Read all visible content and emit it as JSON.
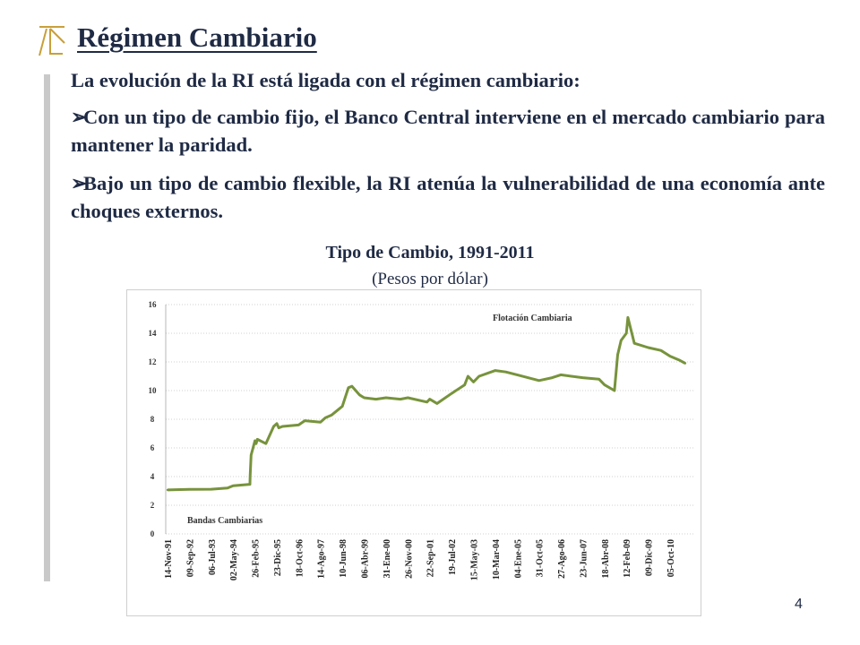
{
  "slide": {
    "title": "Régimen Cambiario",
    "intro": "La evolución de la RI está ligada con el régimen cambiario:",
    "bullets": [
      "Con un tipo de cambio fijo, el Banco Central interviene en el mercado cambiario para mantener la paridad.",
      "Bajo un tipo de cambio flexible, la RI atenúa la vulnerabilidad de una economía ante choques externos."
    ],
    "chart_title": "Tipo de Cambio, 1991-2011",
    "chart_subtitle": "(Pesos por dólar)",
    "page_number": "4"
  },
  "colors": {
    "text": "#1f2a44",
    "accent": "#c8a03a",
    "line": "#77933c",
    "grid": "#d0d0d0",
    "bar": "#c9c9c9"
  },
  "chart_data": {
    "type": "line",
    "title": "",
    "xlabel": "",
    "ylabel": "",
    "ylim": [
      0,
      16
    ],
    "yticks": [
      0,
      2,
      4,
      6,
      8,
      10,
      12,
      14,
      16
    ],
    "grid": true,
    "x_tick_labels": [
      "14-Nov-91",
      "09-Sep-92",
      "06-Jul-93",
      "02-May-94",
      "26-Feb-95",
      "23-Dic-95",
      "18-Oct-96",
      "14-Ago-97",
      "10-Jun-98",
      "06-Abr-99",
      "31-Ene-00",
      "26-Nov-00",
      "22-Sep-01",
      "19-Jul-02",
      "15-May-03",
      "10-Mar-04",
      "04-Ene-05",
      "31-Oct-05",
      "27-Ago-06",
      "23-Jun-07",
      "18-Abr-08",
      "12-Feb-09",
      "09-Dic-09",
      "05-Oct-10"
    ],
    "annotations": [
      "Flotación Cambiaria",
      "Bandas Cambiarias"
    ],
    "series": [
      {
        "x": [
          "14-Nov-91",
          "09-Sep-92",
          "06-Jul-93",
          "15-Feb-94",
          "02-May-94",
          "20-Dic-94",
          "22-Dic-94",
          "05-Ene-95",
          "26-Feb-95",
          "15-Mar-95",
          "01-Abr-95",
          "26-Jul-95",
          "10-Nov-95",
          "23-Dic-95",
          "20-Ene-96",
          "10-Mar-96",
          "18-Oct-96",
          "10-Ene-97",
          "14-Ago-97",
          "20-Oct-97",
          "15-Ene-98",
          "10-Jun-98",
          "01-Sep-98",
          "20-Oct-98",
          "01-Feb-99",
          "06-Abr-99",
          "15-Sep-99",
          "31-Ene-00",
          "15-Ago-00",
          "26-Nov-00",
          "15-Ago-01",
          "22-Sep-01",
          "01-Ene-02",
          "19-Jul-02",
          "15-Ene-03",
          "01-Mar-03",
          "15-May-03",
          "01-Ago-03",
          "10-Mar-04",
          "01-Ago-04",
          "04-Ene-05",
          "31-Oct-05",
          "01-May-06",
          "27-Ago-06",
          "23-Jun-07",
          "01-Feb-08",
          "18-Abr-08",
          "01-Sep-08",
          "15-Oct-08",
          "01-Dic-08",
          "12-Feb-09",
          "05-Mar-09",
          "01-Jun-09",
          "09-Dic-09",
          "01-Jun-10",
          "05-Oct-10",
          "20-Feb-11",
          "01-May-11"
        ],
        "values": [
          3.07,
          3.11,
          3.12,
          3.2,
          3.36,
          3.46,
          4.0,
          5.5,
          6.5,
          6.3,
          6.6,
          6.3,
          7.5,
          7.7,
          7.4,
          7.5,
          7.6,
          7.9,
          7.8,
          8.1,
          8.3,
          8.9,
          10.2,
          10.3,
          9.7,
          9.5,
          9.4,
          9.5,
          9.4,
          9.5,
          9.2,
          9.4,
          9.1,
          9.8,
          10.4,
          11.0,
          10.6,
          11.0,
          11.4,
          11.3,
          11.1,
          10.7,
          10.9,
          11.1,
          10.9,
          10.8,
          10.4,
          10.0,
          12.5,
          13.5,
          14.0,
          15.1,
          13.3,
          13.0,
          12.8,
          12.4,
          12.1,
          11.9
        ]
      }
    ]
  }
}
